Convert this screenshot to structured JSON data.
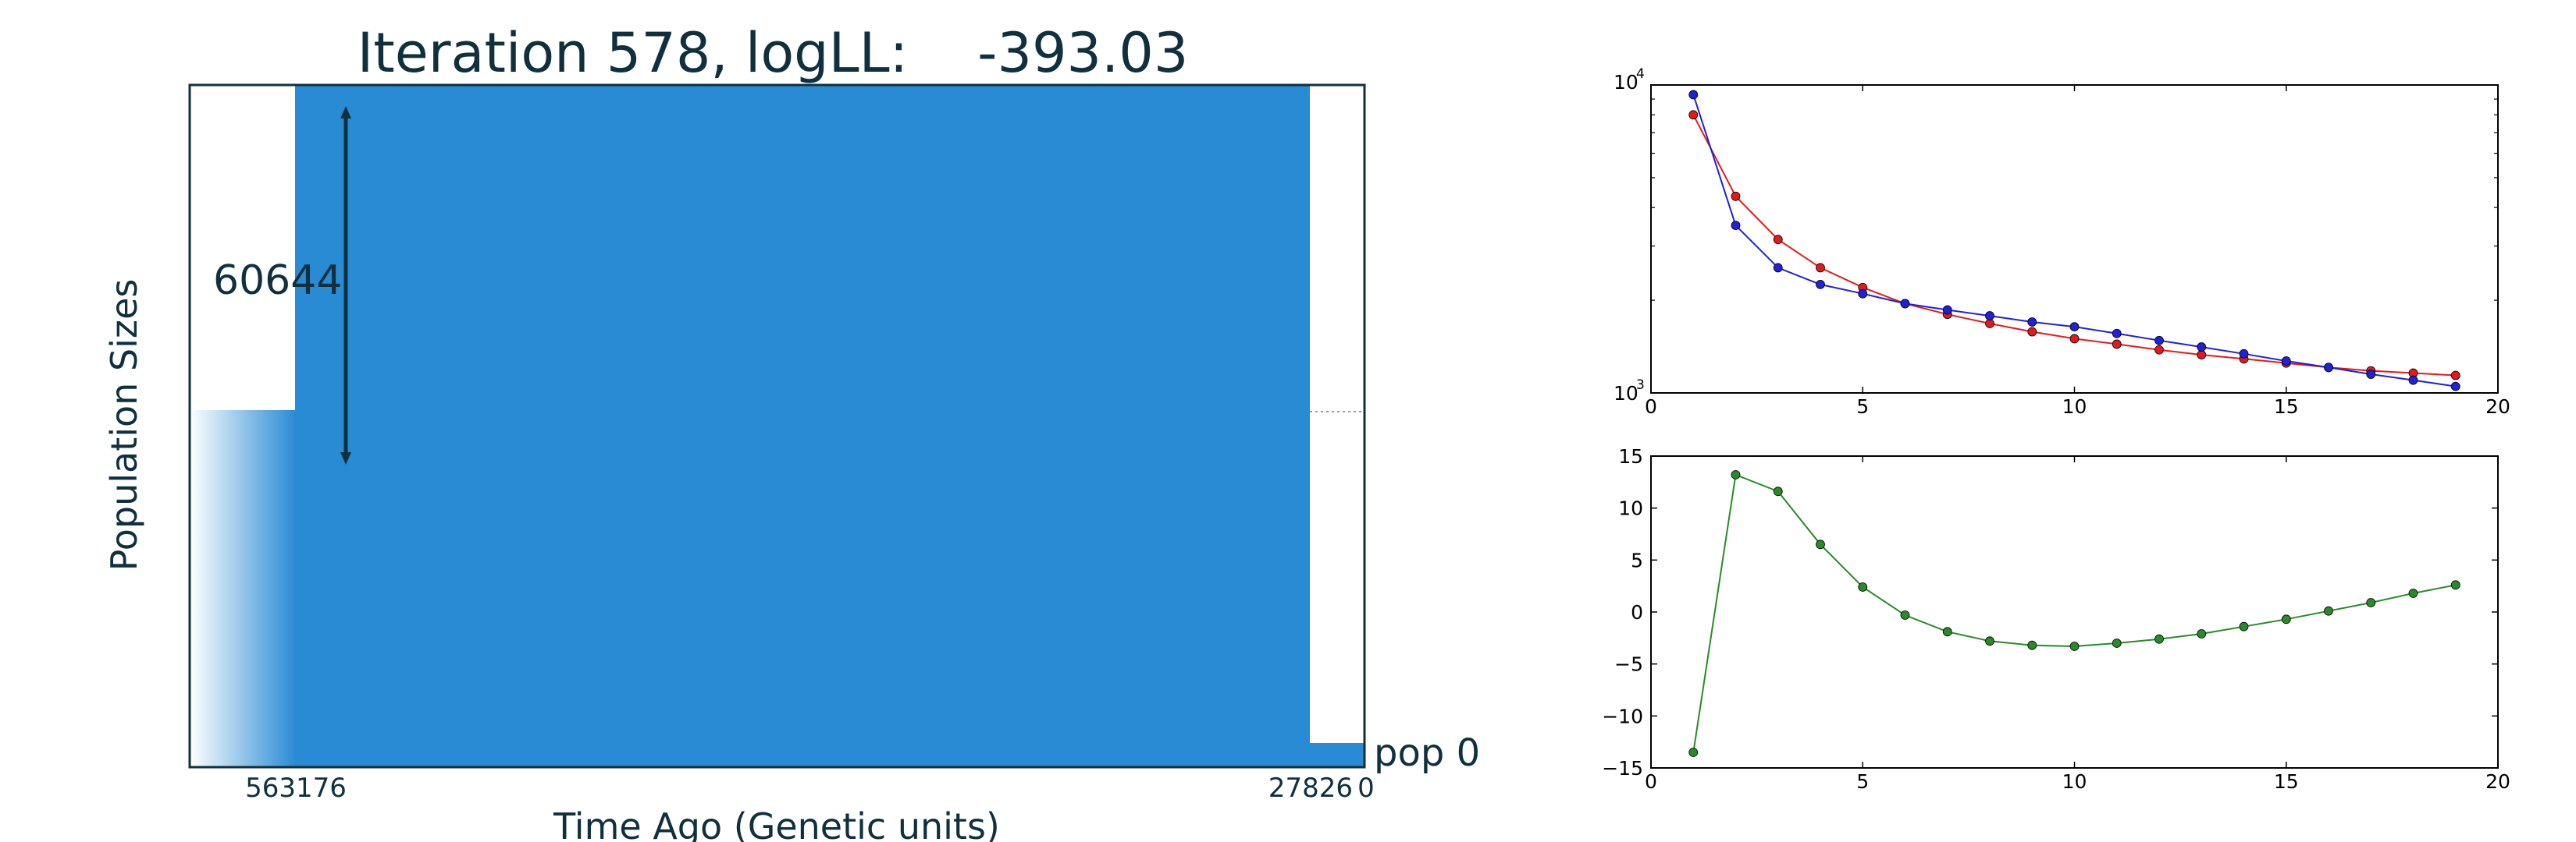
{
  "colors": {
    "text_dark": "#10303d",
    "pop_fill": "#298bd4",
    "red_series": "#e31a1c",
    "blue_series": "#1f22d6",
    "green_series": "#2a8a2a"
  },
  "main_panel": {
    "title": "Iteration 578, logLL:    -393.03",
    "ylabel": "Population Sizes",
    "xlabel": "Time Ago (Genetic units)",
    "pop_label": "pop 0",
    "size_label": "60644",
    "ticks": [
      "563176",
      "27826",
      "0"
    ]
  },
  "chart_data": [
    {
      "type": "line",
      "log_y": true,
      "xlim": [
        0,
        20
      ],
      "ylim": [
        1000,
        10000
      ],
      "x_ticks": [
        "0",
        "5",
        "10",
        "15",
        "20"
      ],
      "y_tick_base": [
        "10",
        "10"
      ],
      "y_tick_exp": [
        "3",
        "4"
      ],
      "x": [
        1,
        2,
        3,
        4,
        5,
        6,
        7,
        8,
        9,
        10,
        11,
        12,
        13,
        14,
        15,
        16,
        17,
        18,
        19
      ],
      "series": [
        {
          "color": "#e31a1c",
          "values": [
            8000,
            4350,
            3150,
            2550,
            2200,
            1950,
            1800,
            1680,
            1580,
            1500,
            1440,
            1380,
            1330,
            1290,
            1250,
            1210,
            1180,
            1160,
            1140
          ]
        },
        {
          "color": "#1f22d6",
          "values": [
            9300,
            3500,
            2550,
            2250,
            2100,
            1950,
            1860,
            1780,
            1700,
            1640,
            1560,
            1480,
            1410,
            1340,
            1270,
            1210,
            1150,
            1100,
            1050
          ]
        }
      ]
    },
    {
      "type": "line",
      "xlim": [
        0,
        20
      ],
      "ylim": [
        -15,
        15
      ],
      "x_ticks": [
        "0",
        "5",
        "10",
        "15",
        "20"
      ],
      "y_ticks": [
        "15",
        "10",
        "5",
        "0",
        "−5",
        "−10",
        "−15"
      ],
      "x": [
        1,
        2,
        3,
        4,
        5,
        6,
        7,
        8,
        9,
        10,
        11,
        12,
        13,
        14,
        15,
        16,
        17,
        18,
        19
      ],
      "series": [
        {
          "color": "#2a8a2a",
          "values": [
            -13.5,
            13.2,
            11.6,
            6.5,
            2.4,
            -0.3,
            -1.9,
            -2.8,
            -3.2,
            -3.3,
            -3.0,
            -2.6,
            -2.1,
            -1.4,
            -0.7,
            0.1,
            0.9,
            1.8,
            2.6
          ]
        }
      ]
    }
  ]
}
